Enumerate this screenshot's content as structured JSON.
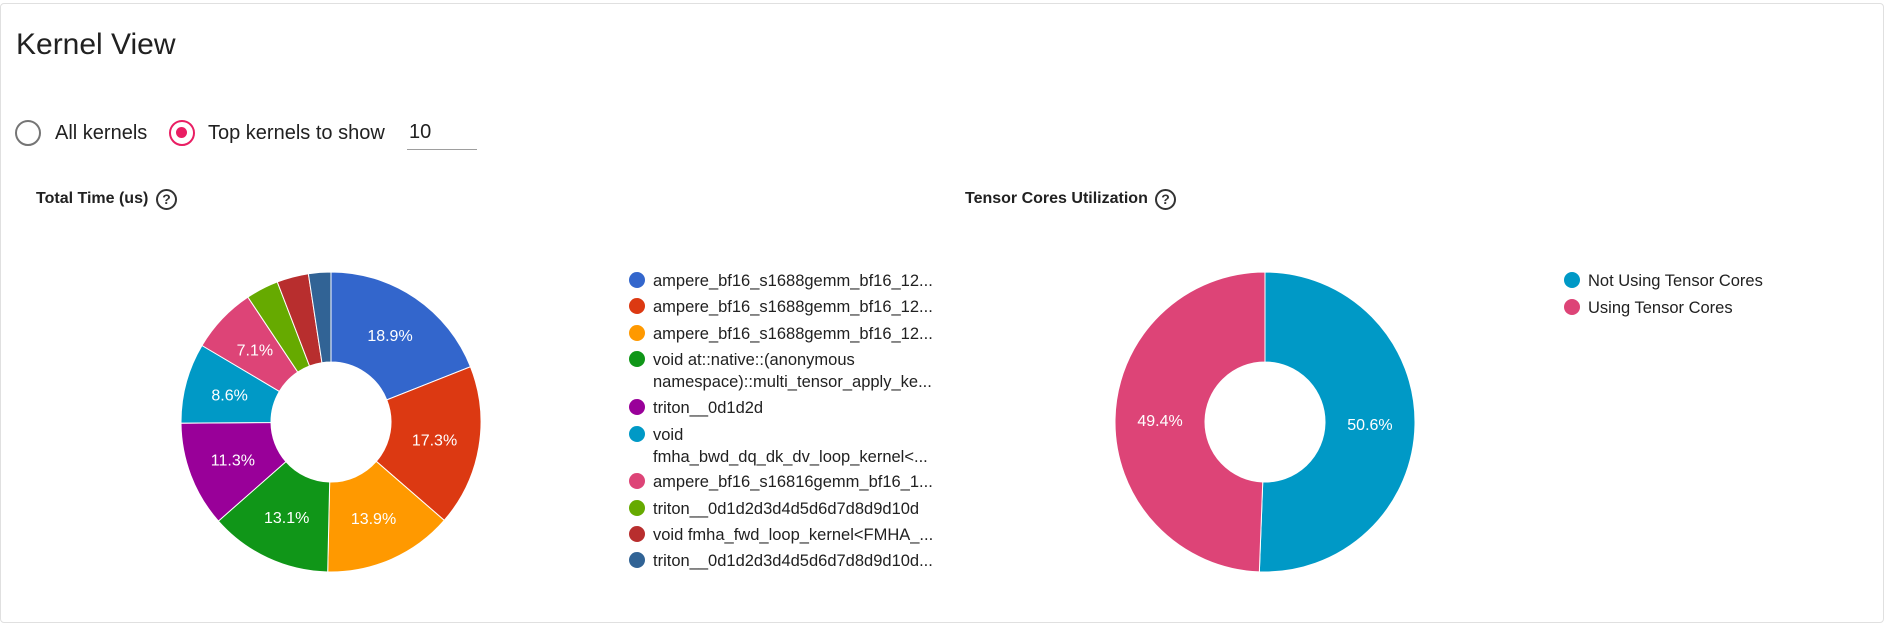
{
  "page": {
    "title": "Kernel View"
  },
  "options": {
    "all_kernels_label": "All kernels",
    "top_kernels_label": "Top kernels to show",
    "top_kernels_value": "10",
    "selected": "top_kernels"
  },
  "charts": {
    "total_time": {
      "title": "Total Time (us)",
      "legend": [
        {
          "line1": "ampere_bf16_s1688gemm_bf16_12...",
          "color": "#3366cc"
        },
        {
          "line1": "ampere_bf16_s1688gemm_bf16_12...",
          "color": "#dc3912"
        },
        {
          "line1": "ampere_bf16_s1688gemm_bf16_12...",
          "color": "#ff9900"
        },
        {
          "line1": "void at::native::(anonymous",
          "line2": "namespace)::multi_tensor_apply_ke...",
          "color": "#109618"
        },
        {
          "line1": "triton__0d1d2d",
          "color": "#990099"
        },
        {
          "line1": "void",
          "line2": "fmha_bwd_dq_dk_dv_loop_kernel<...",
          "color": "#0099c6"
        },
        {
          "line1": "ampere_bf16_s16816gemm_bf16_1...",
          "color": "#dd4477"
        },
        {
          "line1": "triton__0d1d2d3d4d5d6d7d8d9d10d",
          "color": "#66aa00"
        },
        {
          "line1": "void fmha_fwd_loop_kernel<FMHA_...",
          "color": "#b82e2e"
        },
        {
          "line1": "triton__0d1d2d3d4d5d6d7d8d9d10d...",
          "color": "#316395"
        }
      ]
    },
    "tensor_cores": {
      "title": "Tensor Cores Utilization",
      "legend": [
        {
          "line1": "Not Using Tensor Cores",
          "color": "#0099c6"
        },
        {
          "line1": "Using Tensor Cores",
          "color": "#dd4477"
        }
      ]
    }
  },
  "chart_data": [
    {
      "type": "pie",
      "title": "Total Time (us)",
      "categories": [
        "ampere_bf16_s1688gemm_bf16_12...",
        "ampere_bf16_s1688gemm_bf16_12...",
        "ampere_bf16_s1688gemm_bf16_12...",
        "void at::native::(anonymous namespace)::multi_tensor_apply_ke...",
        "triton__0d1d2d",
        "void fmha_bwd_dq_dk_dv_loop_kernel<...",
        "ampere_bf16_s16816gemm_bf16_1...",
        "triton__0d1d2d3d4d5d6d7d8d9d10d",
        "void fmha_fwd_loop_kernel<FMHA_...",
        "triton__0d1d2d3d4d5d6d7d8d9d10d..."
      ],
      "values": [
        18.9,
        17.3,
        13.9,
        13.1,
        11.3,
        8.6,
        7.1,
        3.5,
        3.4,
        2.4
      ],
      "labels": [
        "18.9%",
        "17.3%",
        "13.9%",
        "13.1%",
        "11.3%",
        "8.6%",
        "7.1%",
        "",
        "",
        ""
      ],
      "colors": [
        "#3366cc",
        "#dc3912",
        "#ff9900",
        "#109618",
        "#990099",
        "#0099c6",
        "#dd4477",
        "#66aa00",
        "#b82e2e",
        "#316395"
      ],
      "legend": "right"
    },
    {
      "type": "pie",
      "title": "Tensor Cores Utilization",
      "categories": [
        "Not Using Tensor Cores",
        "Using Tensor Cores"
      ],
      "values": [
        50.6,
        49.4
      ],
      "labels": [
        "50.6%",
        "49.4%"
      ],
      "colors": [
        "#0099c6",
        "#dd4477"
      ],
      "legend": "right"
    }
  ]
}
